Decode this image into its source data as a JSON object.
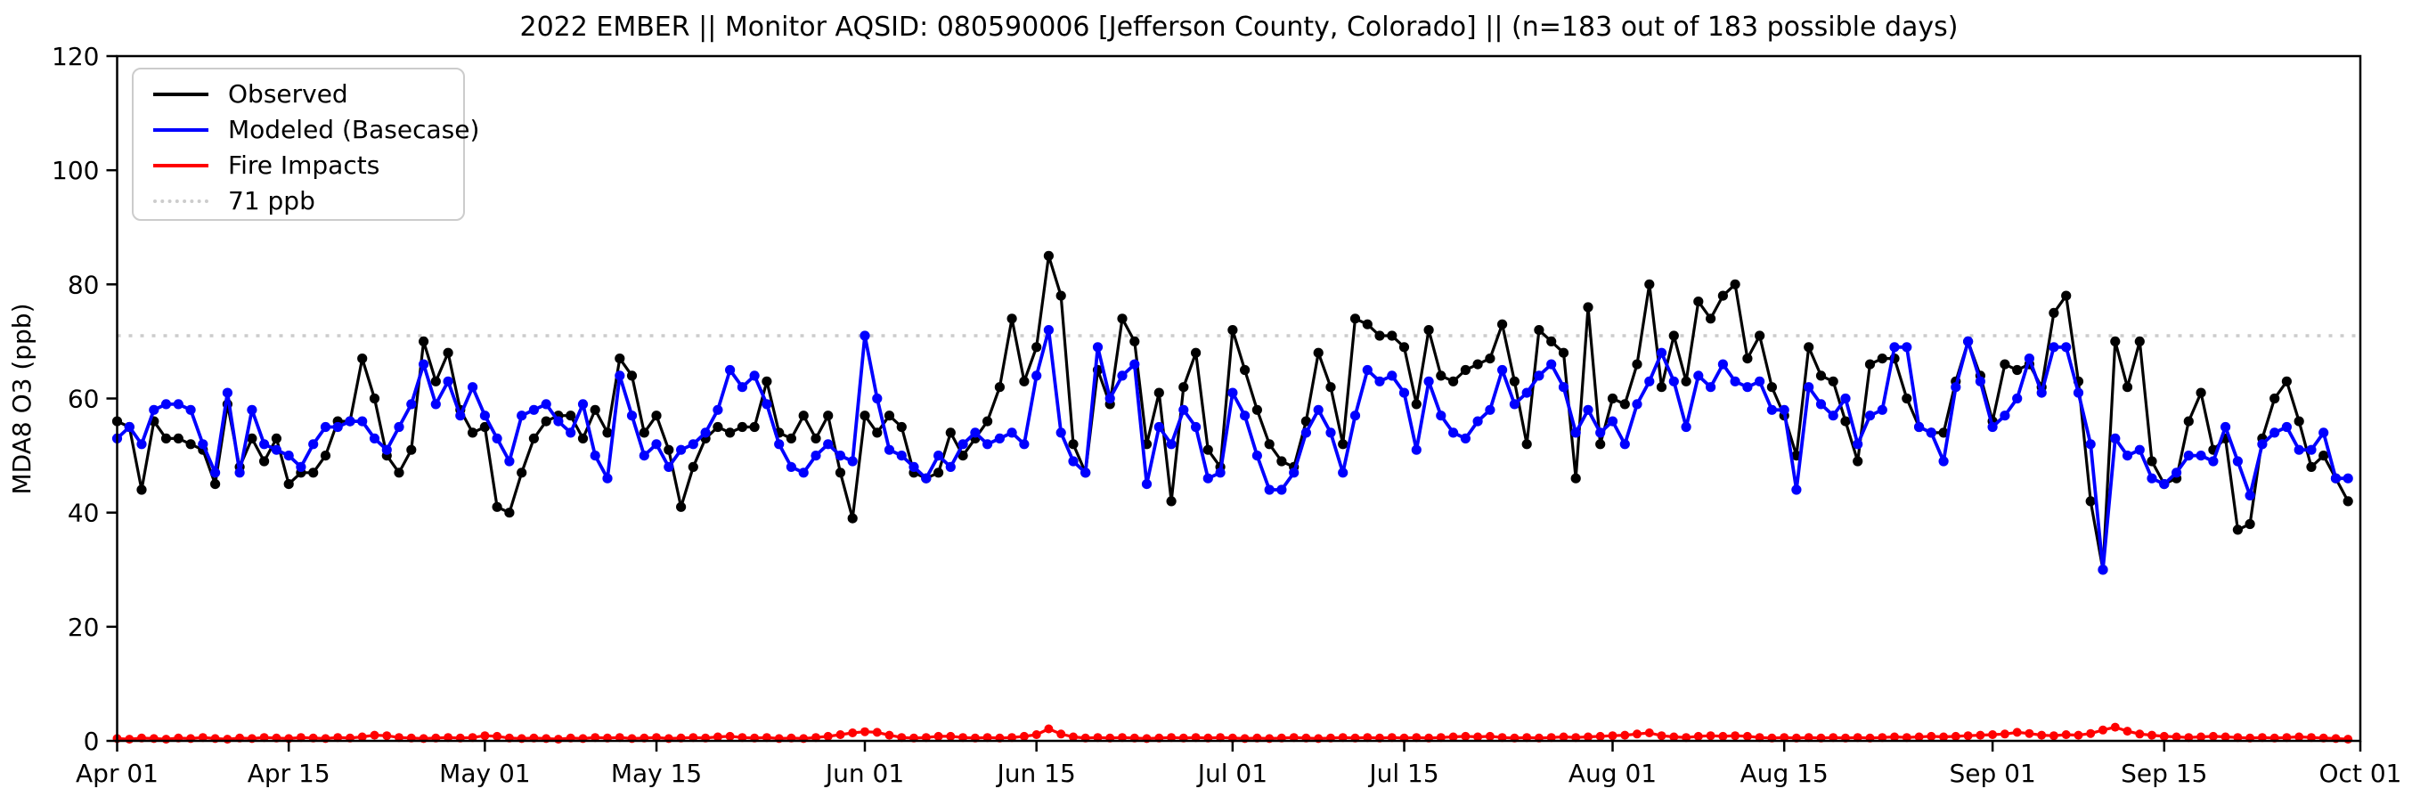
{
  "title": "2022 EMBER || Monitor AQSID: 080590006 [Jefferson County, Colorado] || (n=183 out of 183 possible days)",
  "axes": {
    "ylabel": "MDA8 O3 (ppb)",
    "ylim": [
      0,
      120
    ],
    "yticks": [
      0,
      20,
      40,
      60,
      80,
      100,
      120
    ],
    "xticks": [
      {
        "day": 0,
        "label": "Apr 01"
      },
      {
        "day": 14,
        "label": "Apr 15"
      },
      {
        "day": 30,
        "label": "May 01"
      },
      {
        "day": 44,
        "label": "May 15"
      },
      {
        "day": 61,
        "label": "Jun 01"
      },
      {
        "day": 75,
        "label": "Jun 15"
      },
      {
        "day": 91,
        "label": "Jul 01"
      },
      {
        "day": 105,
        "label": "Jul 15"
      },
      {
        "day": 122,
        "label": "Aug 01"
      },
      {
        "day": 136,
        "label": "Aug 15"
      },
      {
        "day": 153,
        "label": "Sep 01"
      },
      {
        "day": 167,
        "label": "Sep 15"
      },
      {
        "day": 183,
        "label": "Oct 01"
      }
    ],
    "total_days": 183
  },
  "legend": {
    "items": [
      {
        "label": "Observed",
        "color": "#000000",
        "style": "solid"
      },
      {
        "label": "Modeled (Basecase)",
        "color": "#0000ff",
        "style": "solid"
      },
      {
        "label": "Fire Impacts",
        "color": "#ff0000",
        "style": "solid"
      },
      {
        "label": "71 ppb",
        "color": "#cccccc",
        "style": "dotted"
      }
    ]
  },
  "chart_data": {
    "type": "line",
    "x_start": "Apr 01",
    "x_end": "Sep 30",
    "x_unit": "day index from Apr 01 (n=183 daily values)",
    "grid": false,
    "legend_position": "upper left",
    "threshold": {
      "value": 71,
      "label": "71 ppb",
      "color": "#cccccc"
    },
    "series": [
      {
        "name": "Observed",
        "color": "#000000",
        "values": [
          56,
          55,
          44,
          56,
          53,
          53,
          52,
          51,
          45,
          59,
          48,
          53,
          49,
          53,
          45,
          47,
          47,
          50,
          56,
          56,
          67,
          60,
          50,
          47,
          51,
          70,
          63,
          68,
          58,
          54,
          55,
          41,
          40,
          47,
          53,
          56,
          57,
          57,
          53,
          58,
          54,
          67,
          64,
          54,
          57,
          51,
          41,
          48,
          53,
          55,
          54,
          55,
          55,
          63,
          54,
          53,
          57,
          53,
          57,
          47,
          39,
          57,
          54,
          57,
          55,
          47,
          46,
          47,
          54,
          50,
          53,
          56,
          62,
          74,
          63,
          69,
          85,
          78,
          52,
          47,
          65,
          59,
          74,
          70,
          52,
          61,
          42,
          62,
          68,
          51,
          48,
          72,
          65,
          58,
          52,
          49,
          48,
          56,
          68,
          62,
          52,
          74,
          73,
          71,
          71,
          69,
          59,
          72,
          64,
          63,
          65,
          66,
          67,
          73,
          63,
          52,
          72,
          70,
          68,
          46,
          76,
          52,
          60,
          59,
          66,
          80,
          62,
          71,
          63,
          77,
          74,
          78,
          80,
          67,
          71,
          62,
          57,
          50,
          69,
          64,
          63,
          56,
          49,
          66,
          67,
          67,
          60,
          55,
          54,
          54,
          63,
          70,
          64,
          56,
          66,
          65,
          66,
          62,
          75,
          78,
          63,
          42,
          30,
          70,
          62,
          70,
          49,
          45,
          46,
          56,
          61,
          51,
          53,
          37,
          38,
          53,
          60,
          63,
          56,
          48,
          50,
          46,
          42
        ]
      },
      {
        "name": "Modeled (Basecase)",
        "color": "#0000ff",
        "values": [
          53,
          55,
          52,
          58,
          59,
          59,
          58,
          52,
          47,
          61,
          47,
          58,
          52,
          51,
          50,
          48,
          52,
          55,
          55,
          56,
          56,
          53,
          51,
          55,
          59,
          66,
          59,
          63,
          57,
          62,
          57,
          53,
          49,
          57,
          58,
          59,
          56,
          54,
          59,
          50,
          46,
          64,
          57,
          50,
          52,
          48,
          51,
          52,
          54,
          58,
          65,
          62,
          64,
          59,
          52,
          48,
          47,
          50,
          52,
          50,
          49,
          71,
          60,
          51,
          50,
          48,
          46,
          50,
          48,
          52,
          54,
          52,
          53,
          54,
          52,
          64,
          72,
          54,
          49,
          47,
          69,
          60,
          64,
          66,
          45,
          55,
          52,
          58,
          55,
          46,
          47,
          61,
          57,
          50,
          44,
          44,
          47,
          54,
          58,
          54,
          47,
          57,
          65,
          63,
          64,
          61,
          51,
          63,
          57,
          54,
          53,
          56,
          58,
          65,
          59,
          61,
          64,
          66,
          62,
          54,
          58,
          54,
          56,
          52,
          59,
          63,
          68,
          63,
          55,
          64,
          62,
          66,
          63,
          62,
          63,
          58,
          58,
          44,
          62,
          59,
          57,
          60,
          52,
          57,
          58,
          69,
          69,
          55,
          54,
          49,
          62,
          70,
          63,
          55,
          57,
          60,
          67,
          61,
          69,
          69,
          61,
          52,
          30,
          53,
          50,
          51,
          46,
          45,
          47,
          50,
          50,
          49,
          55,
          49,
          43,
          52,
          54,
          55,
          51,
          51,
          54,
          46,
          46
        ]
      },
      {
        "name": "Fire Impacts",
        "color": "#ff0000",
        "values": [
          0.4,
          0.3,
          0.5,
          0.4,
          0.3,
          0.5,
          0.4,
          0.6,
          0.4,
          0.3,
          0.5,
          0.4,
          0.6,
          0.5,
          0.4,
          0.6,
          0.5,
          0.4,
          0.6,
          0.5,
          0.7,
          1.0,
          0.9,
          0.6,
          0.5,
          0.4,
          0.5,
          0.6,
          0.5,
          0.6,
          0.9,
          0.8,
          0.5,
          0.4,
          0.5,
          0.4,
          0.3,
          0.5,
          0.4,
          0.6,
          0.5,
          0.6,
          0.4,
          0.5,
          0.6,
          0.4,
          0.5,
          0.6,
          0.5,
          0.7,
          0.8,
          0.6,
          0.5,
          0.6,
          0.4,
          0.5,
          0.4,
          0.6,
          0.8,
          1.1,
          1.4,
          1.6,
          1.5,
          1.0,
          0.6,
          0.5,
          0.6,
          0.8,
          0.8,
          0.6,
          0.5,
          0.6,
          0.5,
          0.6,
          0.8,
          1.1,
          2.1,
          1.2,
          0.7,
          0.5,
          0.6,
          0.5,
          0.6,
          0.5,
          0.4,
          0.5,
          0.6,
          0.5,
          0.6,
          0.5,
          0.6,
          0.5,
          0.4,
          0.5,
          0.4,
          0.5,
          0.6,
          0.5,
          0.4,
          0.5,
          0.6,
          0.5,
          0.6,
          0.5,
          0.6,
          0.5,
          0.6,
          0.5,
          0.6,
          0.7,
          0.8,
          0.7,
          0.8,
          0.6,
          0.5,
          0.6,
          0.5,
          0.6,
          0.7,
          0.6,
          0.7,
          0.8,
          0.9,
          1.0,
          1.2,
          1.4,
          0.9,
          0.7,
          0.6,
          0.8,
          0.9,
          0.8,
          0.9,
          0.8,
          0.6,
          0.5,
          0.6,
          0.5,
          0.6,
          0.5,
          0.6,
          0.5,
          0.6,
          0.5,
          0.6,
          0.7,
          0.6,
          0.7,
          0.8,
          0.7,
          0.8,
          0.9,
          1.0,
          1.1,
          1.2,
          1.5,
          1.3,
          1.0,
          0.9,
          1.1,
          1.0,
          1.3,
          1.9,
          2.4,
          1.7,
          1.2,
          1.0,
          0.8,
          0.7,
          0.6,
          0.7,
          0.8,
          0.7,
          0.6,
          0.5,
          0.6,
          0.5,
          0.6,
          0.7,
          0.6,
          0.5,
          0.4,
          0.3
        ]
      }
    ]
  }
}
